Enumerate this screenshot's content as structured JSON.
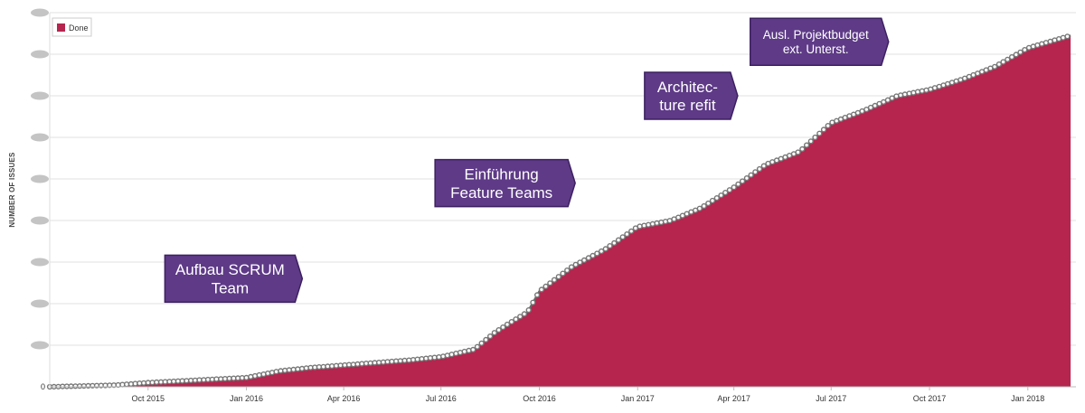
{
  "chart_data": {
    "type": "area",
    "title": "",
    "xlabel": "",
    "ylabel": "NUMBER OF ISSUES",
    "x_ticks": [
      "Oct 2015",
      "Jan 2016",
      "Apr 2016",
      "Jul 2016",
      "Oct 2016",
      "Jan 2017",
      "Apr 2017",
      "Jul 2017",
      "Oct 2017",
      "Jan 2018"
    ],
    "y_ticks_visible": [
      "0"
    ],
    "ylim": [
      0,
      900
    ],
    "xlim": [
      "2015-07-01",
      "2018-02-15"
    ],
    "grid": true,
    "legend_placement": "top-left",
    "series": [
      {
        "name": "Done",
        "color": "#b5254e",
        "points": [
          [
            "2015-07-01",
            0
          ],
          [
            "2015-08-01",
            2
          ],
          [
            "2015-09-01",
            4
          ],
          [
            "2015-10-01",
            10
          ],
          [
            "2015-11-01",
            14
          ],
          [
            "2015-12-01",
            18
          ],
          [
            "2016-01-01",
            22
          ],
          [
            "2016-02-01",
            38
          ],
          [
            "2016-03-01",
            46
          ],
          [
            "2016-04-01",
            52
          ],
          [
            "2016-05-01",
            58
          ],
          [
            "2016-06-01",
            64
          ],
          [
            "2016-07-01",
            72
          ],
          [
            "2016-08-01",
            90
          ],
          [
            "2016-08-20",
            130
          ],
          [
            "2016-09-01",
            150
          ],
          [
            "2016-09-20",
            180
          ],
          [
            "2016-10-01",
            230
          ],
          [
            "2016-11-01",
            290
          ],
          [
            "2016-12-01",
            330
          ],
          [
            "2017-01-01",
            385
          ],
          [
            "2017-02-01",
            400
          ],
          [
            "2017-03-01",
            430
          ],
          [
            "2017-04-01",
            480
          ],
          [
            "2017-05-01",
            535
          ],
          [
            "2017-06-01",
            565
          ],
          [
            "2017-07-01",
            635
          ],
          [
            "2017-08-01",
            665
          ],
          [
            "2017-09-01",
            700
          ],
          [
            "2017-10-01",
            715
          ],
          [
            "2017-11-01",
            740
          ],
          [
            "2017-12-01",
            770
          ],
          [
            "2018-01-01",
            815
          ],
          [
            "2018-02-10",
            845
          ]
        ]
      }
    ],
    "annotations": [
      {
        "lines": [
          "Aufbau SCRUM",
          "Team"
        ],
        "x": "2015-12-20",
        "y": 260
      },
      {
        "lines": [
          "Einführung",
          "Feature Teams"
        ],
        "x": "2016-08-30",
        "y": 490
      },
      {
        "lines": [
          "Architec-",
          "ture refit"
        ],
        "x": "2017-02-20",
        "y": 700
      },
      {
        "lines": [
          "Ausl. Projektbudget",
          "ext. Unterst."
        ],
        "x": "2017-06-20",
        "y": 830
      }
    ],
    "colors": {
      "area": "#b5254e",
      "callout_fill": "#5e3a87",
      "callout_border": "#3d2160",
      "grid": "#e2e2e2",
      "marker": "#777777"
    }
  }
}
